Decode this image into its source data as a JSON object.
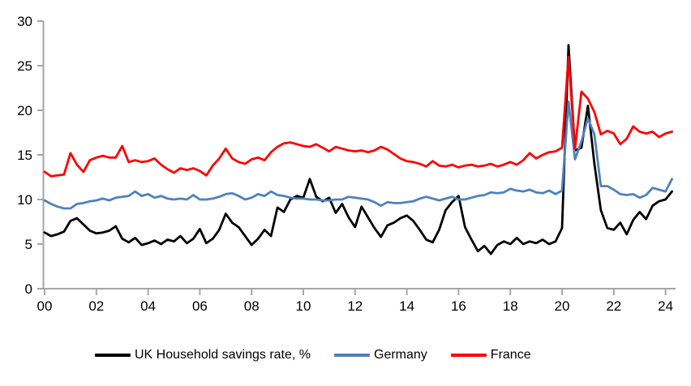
{
  "chart_data": {
    "type": "line",
    "title": "",
    "xlabel": "",
    "ylabel": "",
    "x_unit": "quarter",
    "x_start": "2000Q1",
    "x_end": "2024Q2",
    "x_tick_labels": [
      "00",
      "02",
      "04",
      "06",
      "08",
      "10",
      "12",
      "14",
      "16",
      "18",
      "20",
      "22",
      "24"
    ],
    "y_ticks": [
      0,
      5,
      10,
      15,
      20,
      25,
      30
    ],
    "ylim": [
      0,
      30
    ],
    "grid": "off",
    "legend_position": "bottom",
    "series": [
      {
        "name": "UK Household savings rate, %",
        "color": "#000000",
        "values": [
          6.3,
          5.9,
          6.1,
          6.4,
          7.6,
          7.9,
          7.2,
          6.5,
          6.2,
          6.3,
          6.5,
          7.0,
          5.6,
          5.2,
          5.7,
          4.9,
          5.1,
          5.4,
          5.0,
          5.5,
          5.3,
          5.9,
          5.1,
          5.6,
          6.7,
          5.1,
          5.6,
          6.6,
          8.4,
          7.4,
          6.9,
          5.9,
          4.9,
          5.6,
          6.6,
          5.9,
          9.1,
          8.6,
          10.0,
          10.4,
          10.2,
          12.3,
          10.3,
          9.8,
          10.2,
          8.5,
          9.5,
          8.0,
          6.9,
          9.2,
          8.0,
          6.8,
          5.8,
          7.1,
          7.4,
          7.9,
          8.2,
          7.6,
          6.6,
          5.5,
          5.2,
          6.6,
          8.8,
          9.7,
          10.4,
          6.9,
          5.5,
          4.2,
          4.8,
          3.9,
          4.9,
          5.3,
          5.0,
          5.7,
          5.0,
          5.3,
          5.1,
          5.5,
          5.0,
          5.3,
          6.8,
          27.3,
          15.5,
          15.8,
          20.5,
          14.0,
          8.8,
          6.8,
          6.6,
          7.4,
          6.1,
          7.7,
          8.6,
          7.8,
          9.3,
          9.8,
          10.0,
          10.9
        ]
      },
      {
        "name": "Germany",
        "color": "#4f81bd",
        "values": [
          9.9,
          9.5,
          9.2,
          9.0,
          9.0,
          9.5,
          9.6,
          9.8,
          9.9,
          10.1,
          9.9,
          10.2,
          10.3,
          10.4,
          10.9,
          10.4,
          10.6,
          10.2,
          10.4,
          10.1,
          10.0,
          10.1,
          10.0,
          10.5,
          10.0,
          10.0,
          10.1,
          10.3,
          10.6,
          10.7,
          10.4,
          10.0,
          10.2,
          10.6,
          10.4,
          10.9,
          10.5,
          10.4,
          10.2,
          10.1,
          10.1,
          10.0,
          10.0,
          9.9,
          9.9,
          10.0,
          10.0,
          10.3,
          10.2,
          10.1,
          10.0,
          9.7,
          9.3,
          9.7,
          9.6,
          9.6,
          9.7,
          9.8,
          10.1,
          10.3,
          10.1,
          9.9,
          10.1,
          10.3,
          10.0,
          10.0,
          10.2,
          10.4,
          10.5,
          10.8,
          10.7,
          10.8,
          11.2,
          11.0,
          10.9,
          11.1,
          10.8,
          10.7,
          11.0,
          10.6,
          11.0,
          21.0,
          14.5,
          16.5,
          19.1,
          17.3,
          11.5,
          11.5,
          11.1,
          10.6,
          10.5,
          10.6,
          10.2,
          10.5,
          11.3,
          11.1,
          10.9,
          12.3
        ]
      },
      {
        "name": "France",
        "color": "#ff0000",
        "values": [
          13.1,
          12.6,
          12.7,
          12.8,
          15.2,
          13.9,
          13.1,
          14.4,
          14.7,
          14.9,
          14.7,
          14.7,
          16.0,
          14.2,
          14.4,
          14.2,
          14.3,
          14.6,
          13.9,
          13.4,
          13.0,
          13.5,
          13.3,
          13.5,
          13.2,
          12.7,
          13.8,
          14.6,
          15.7,
          14.6,
          14.2,
          14.0,
          14.5,
          14.7,
          14.4,
          15.3,
          15.9,
          16.3,
          16.4,
          16.2,
          16.0,
          15.9,
          16.2,
          15.8,
          15.4,
          15.9,
          15.7,
          15.5,
          15.4,
          15.5,
          15.3,
          15.5,
          15.9,
          15.6,
          15.1,
          14.6,
          14.3,
          14.2,
          14.0,
          13.7,
          14.3,
          13.8,
          13.7,
          13.9,
          13.6,
          13.8,
          13.9,
          13.7,
          13.8,
          14.0,
          13.7,
          13.9,
          14.2,
          13.9,
          14.4,
          15.2,
          14.6,
          15.0,
          15.3,
          15.4,
          15.8,
          26.0,
          15.7,
          22.1,
          21.3,
          19.8,
          17.3,
          17.7,
          17.4,
          16.2,
          16.8,
          18.2,
          17.6,
          17.4,
          17.6,
          17.0,
          17.4,
          17.6
        ]
      }
    ]
  },
  "colors": {
    "axis": "#a6a6a6",
    "text": "#000000",
    "background": "#ffffff"
  }
}
